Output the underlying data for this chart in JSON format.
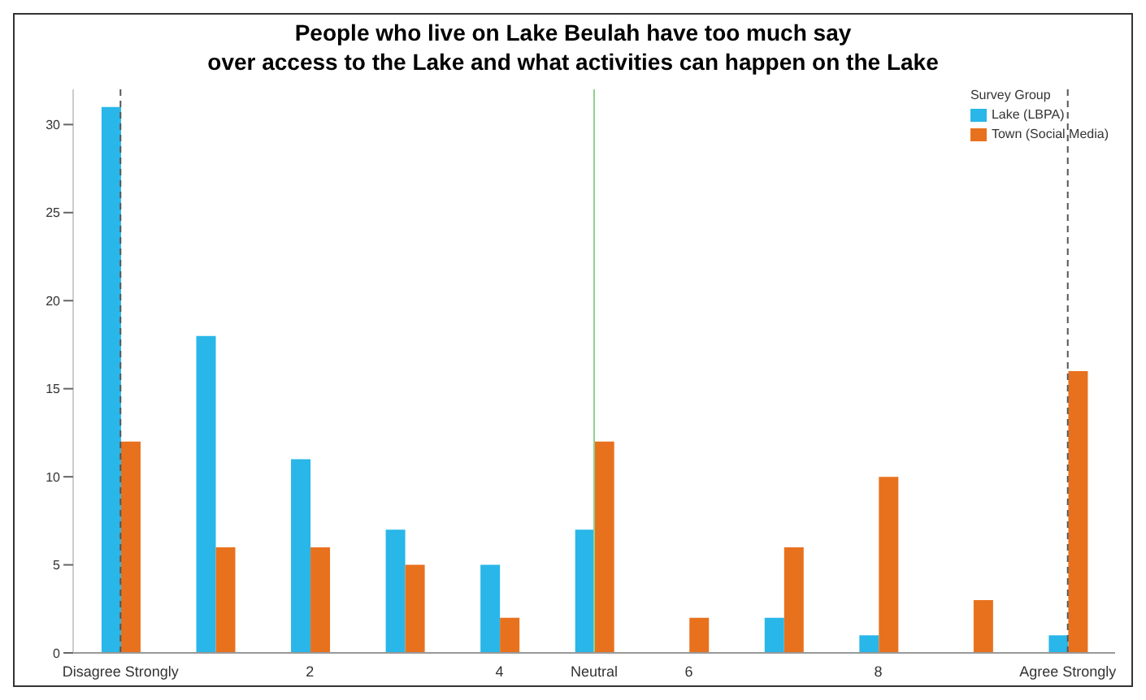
{
  "chart_data": {
    "type": "bar",
    "title": "People who live on Lake Beulah have too much say\nover access to the Lake and what activities can happen on the Lake",
    "categories": [
      "Disagree Strongly",
      null,
      "2",
      null,
      "4",
      "Neutral",
      "6",
      null,
      "8",
      null,
      "Agree Strongly"
    ],
    "series": [
      {
        "name": "Lake (LBPA)",
        "color": "#29b6e8",
        "values": [
          31,
          18,
          11,
          7,
          5,
          7,
          0,
          2,
          1,
          0,
          1
        ]
      },
      {
        "name": "Town (Social Media)",
        "color": "#e8711e",
        "values": [
          12,
          6,
          6,
          5,
          2,
          12,
          2,
          6,
          10,
          3,
          16
        ]
      }
    ],
    "legend_title": "Survey Group",
    "legend": "top right",
    "ylim": [
      0,
      32
    ],
    "yticks": [
      0,
      5,
      10,
      15,
      20,
      25,
      30
    ],
    "ref_lines": [
      {
        "axis": "x",
        "value": "Disagree Strongly",
        "color": "#555555",
        "line_style": "dashed"
      },
      {
        "axis": "x",
        "value": "Neutral",
        "color": "#8fd18f",
        "line_style": "solid"
      },
      {
        "axis": "x",
        "value": "Agree Strongly",
        "color": "#555555",
        "line_style": "dashed"
      }
    ]
  }
}
